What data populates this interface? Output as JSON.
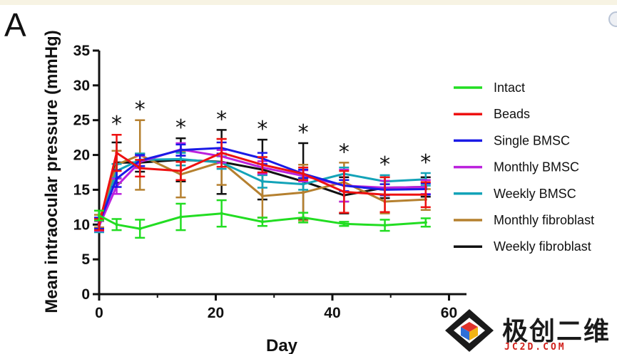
{
  "panel_label": "A",
  "watermark": {
    "text_cn": "极创二维",
    "site": "JC2D.COM"
  },
  "chart_data": {
    "type": "line",
    "title": "",
    "xlabel": "Day",
    "ylabel": "Mean intraocular pressure (mmHg)",
    "xlim": [
      0,
      63
    ],
    "ylim": [
      0,
      35
    ],
    "x_ticks": [
      0,
      20,
      40,
      60
    ],
    "y_ticks": [
      0,
      5,
      10,
      15,
      20,
      25,
      30,
      35
    ],
    "significance_days": [
      3,
      7,
      14,
      21,
      28,
      35,
      42,
      49,
      56
    ],
    "significance_marker": "*",
    "legend_position": "right",
    "series": [
      {
        "name": "Intact",
        "color": "#22dd22",
        "x": [
          0,
          3,
          7,
          14,
          21,
          28,
          35,
          42,
          49,
          56
        ],
        "y": [
          11.3,
          10.0,
          9.4,
          11.1,
          11.6,
          10.4,
          11.0,
          10.1,
          9.9,
          10.3
        ],
        "err": [
          0.7,
          0.8,
          1.3,
          1.9,
          1.9,
          0.6,
          0.7,
          0.3,
          0.8,
          0.6
        ]
      },
      {
        "name": "Beads",
        "color": "#ee1111",
        "x": [
          0,
          3,
          7,
          14,
          21,
          28,
          35,
          42,
          49,
          56
        ],
        "y": [
          10.0,
          20.3,
          18.1,
          17.7,
          20.3,
          18.6,
          17.3,
          14.7,
          14.3,
          14.3
        ],
        "err": [
          0.8,
          2.6,
          1.2,
          1.3,
          2.0,
          1.1,
          0.9,
          3.0,
          2.5,
          1.8
        ]
      },
      {
        "name": "Single BMSC",
        "color": "#1a1ae6",
        "x": [
          0,
          3,
          7,
          14,
          21,
          28,
          35,
          42,
          49,
          56
        ],
        "y": [
          10.2,
          16.6,
          19.2,
          20.7,
          21.0,
          19.5,
          17.3,
          15.6,
          15.0,
          15.1
        ],
        "err": [
          0.8,
          1.2,
          0.8,
          0.8,
          0.8,
          0.8,
          0.6,
          0.8,
          0.8,
          0.8
        ]
      },
      {
        "name": "Monthly BMSC",
        "color": "#bb22dd",
        "x": [
          0,
          3,
          7,
          14,
          21,
          28,
          35,
          42,
          49,
          56
        ],
        "y": [
          9.8,
          15.5,
          19.0,
          20.8,
          19.8,
          18.2,
          17.0,
          15.6,
          15.3,
          15.4
        ],
        "err": [
          0.7,
          1.1,
          0.9,
          0.9,
          0.9,
          0.9,
          0.8,
          2.3,
          1.0,
          1.0
        ]
      },
      {
        "name": "Weekly BMSC",
        "color": "#13a3b8",
        "x": [
          0,
          3,
          7,
          14,
          21,
          28,
          35,
          42,
          49,
          56
        ],
        "y": [
          9.7,
          17.7,
          19.3,
          19.4,
          18.9,
          16.2,
          15.8,
          17.3,
          16.2,
          16.5
        ],
        "err": [
          0.8,
          1.0,
          0.9,
          0.9,
          0.9,
          0.9,
          0.8,
          0.9,
          0.9,
          0.9
        ]
      },
      {
        "name": "Monthly fibroblast",
        "color": "#b5802f",
        "x": [
          0,
          3,
          7,
          14,
          21,
          28,
          35,
          42,
          49,
          56
        ],
        "y": [
          10.5,
          18.6,
          20.0,
          17.2,
          19.0,
          14.1,
          14.6,
          16.1,
          13.3,
          13.6
        ],
        "err": [
          0.9,
          2.0,
          5.0,
          3.3,
          3.3,
          3.1,
          4.0,
          2.8,
          1.7,
          1.5
        ]
      },
      {
        "name": "Weekly fibroblast",
        "color": "#111111",
        "x": [
          0,
          3,
          7,
          14,
          21,
          28,
          35,
          42,
          49,
          56
        ],
        "y": [
          10.2,
          18.9,
          18.9,
          19.3,
          19.0,
          17.9,
          16.2,
          14.2,
          15.3,
          15.4
        ],
        "err": [
          0.7,
          2.9,
          1.3,
          3.1,
          4.6,
          4.3,
          5.5,
          2.6,
          1.5,
          1.4
        ]
      }
    ]
  }
}
